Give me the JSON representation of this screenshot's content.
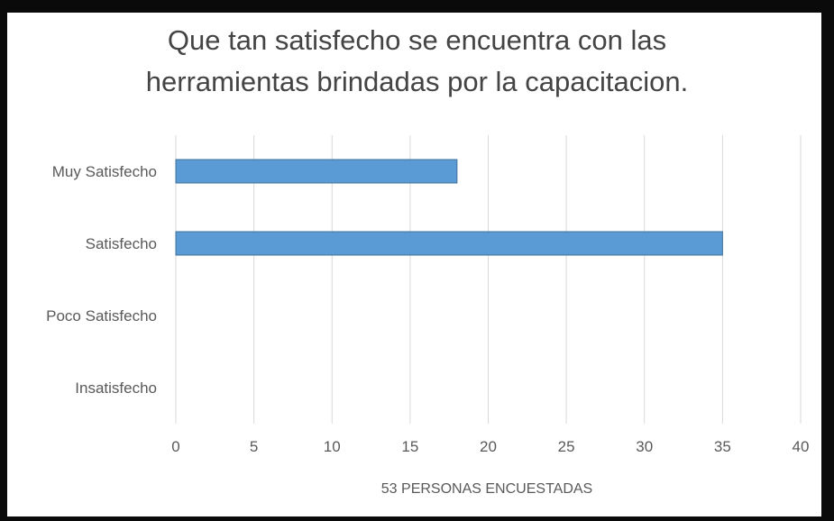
{
  "chart_data": {
    "type": "bar",
    "orientation": "horizontal",
    "title_lines": [
      "Que tan satisfecho se encuentra con las",
      "herramientas brindadas por la capacitacion."
    ],
    "categories": [
      "Muy Satisfecho",
      "Satisfecho",
      "Poco Satisfecho",
      "Insatisfecho"
    ],
    "values": [
      18,
      35,
      0,
      0
    ],
    "xlabel": "53 PERSONAS ENCUESTADAS",
    "xlim": [
      0,
      40
    ],
    "xticks": [
      "0",
      "5",
      "10",
      "15",
      "20",
      "25",
      "30",
      "35",
      "40"
    ],
    "grid": true,
    "legend": "none",
    "bar_color": "#5b9bd5",
    "bar_edge_color": "#41719c",
    "grid_color": "#d9d9d9"
  }
}
